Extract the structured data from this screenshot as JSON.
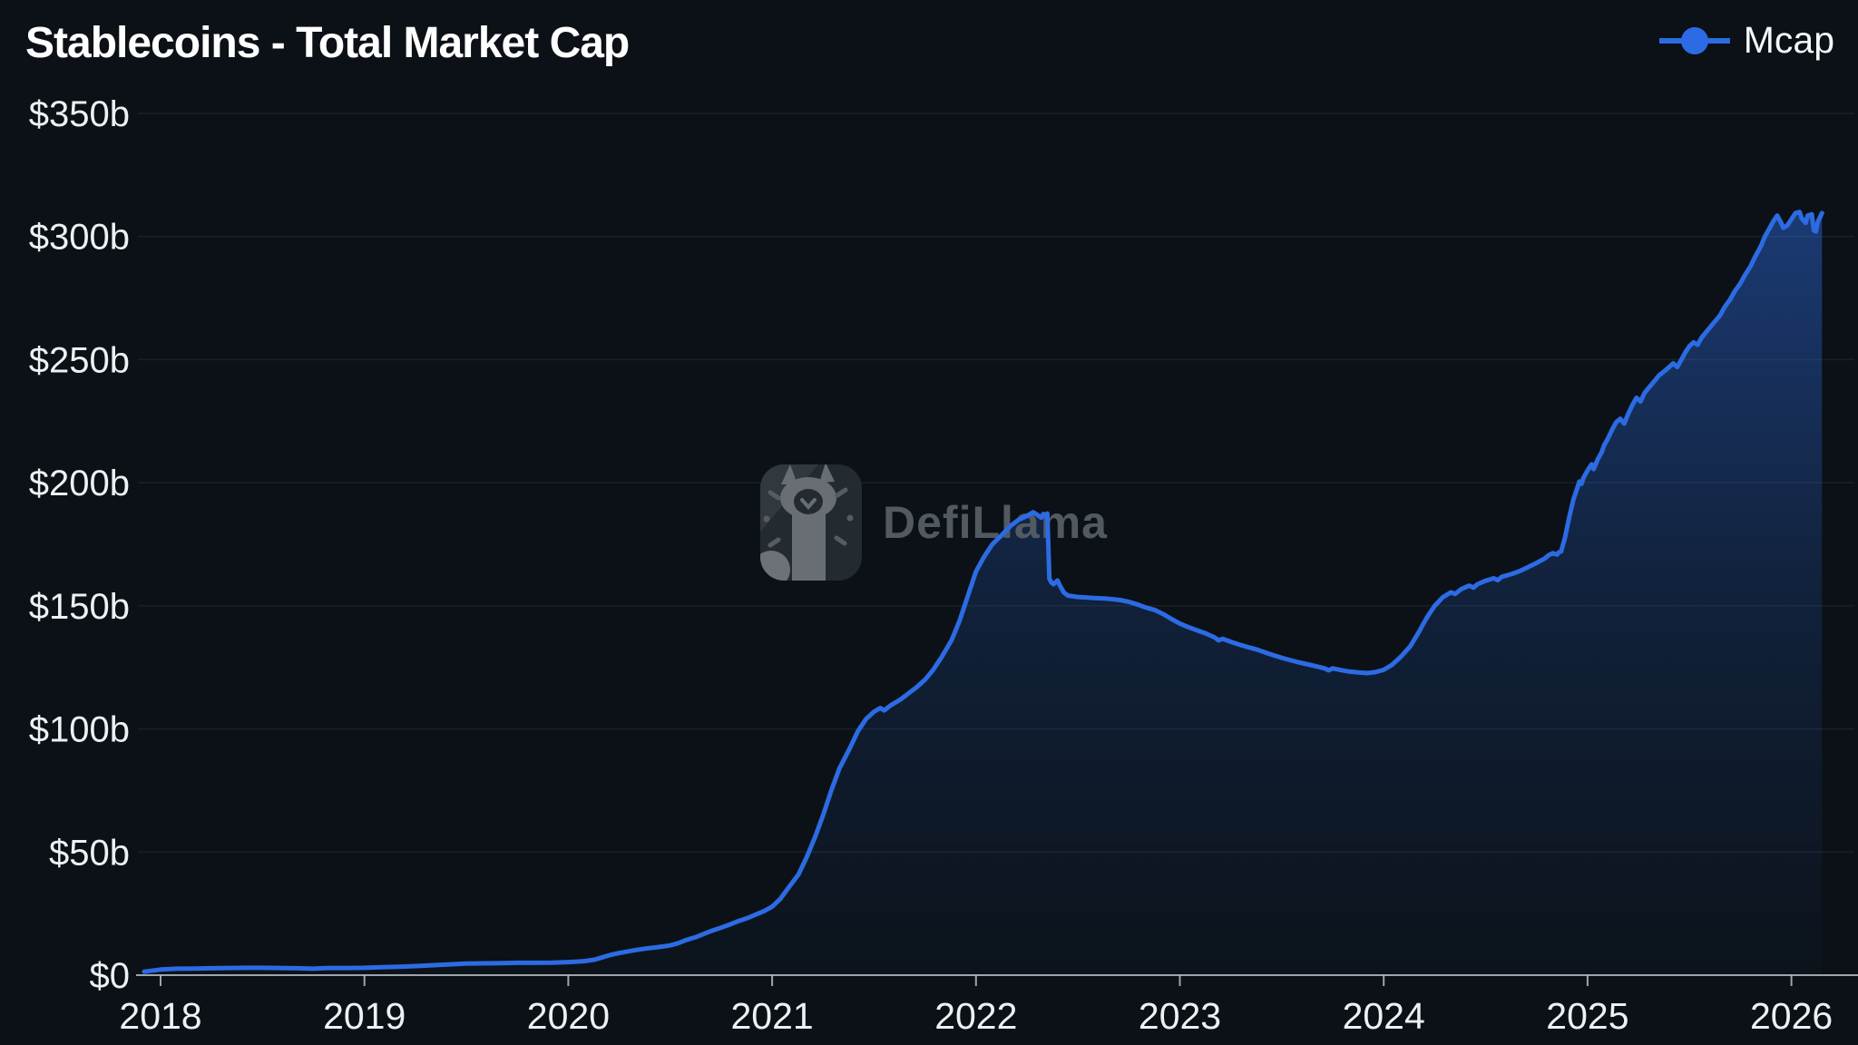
{
  "header": {
    "title": "Stablecoins - Total Market Cap"
  },
  "legend": {
    "label": "Mcap",
    "marker_color": "#2c6be3"
  },
  "watermark": {
    "brand": "DefiLlama"
  },
  "colors": {
    "background": "#0b1116",
    "line": "#2c6be3",
    "area_top": "rgba(45,108,228,0.52)",
    "area_mid": "rgba(45,108,228,0.18)",
    "area_bottom": "rgba(45,108,228,0.02)",
    "grid": "rgba(255,255,255,0.065)",
    "axis": "rgba(185,192,198,0.85)",
    "text": "#eef1f3",
    "watermark_text": "#565d64"
  },
  "chart_data": {
    "type": "area",
    "title": "Stablecoins - Total Market Cap",
    "series_name": "Mcap",
    "unit": "USD billions",
    "grid": "horizontal",
    "legend_position": "top-right",
    "xlim": [
      2017.92,
      2026.33
    ],
    "ylim": [
      0,
      350
    ],
    "x_ticks": [
      2018,
      2019,
      2020,
      2021,
      2022,
      2023,
      2024,
      2025,
      2026
    ],
    "x_tick_labels": [
      "2018",
      "2019",
      "2020",
      "2021",
      "2022",
      "2023",
      "2024",
      "2025",
      "2026"
    ],
    "y_tick_values": [
      0,
      50,
      100,
      150,
      200,
      250,
      300,
      350
    ],
    "y_tick_labels": [
      "$0",
      "$50b",
      "$100b",
      "$150b",
      "$200b",
      "$250b",
      "$300b",
      "$350b"
    ],
    "points": [
      [
        2017.92,
        1.4
      ],
      [
        2018.0,
        2.3
      ],
      [
        2018.08,
        2.6
      ],
      [
        2018.17,
        2.7
      ],
      [
        2018.25,
        2.8
      ],
      [
        2018.33,
        2.9
      ],
      [
        2018.42,
        3.0
      ],
      [
        2018.5,
        3.0
      ],
      [
        2018.58,
        2.9
      ],
      [
        2018.67,
        2.8
      ],
      [
        2018.75,
        2.6
      ],
      [
        2018.79,
        2.8
      ],
      [
        2018.83,
        2.9
      ],
      [
        2018.92,
        2.9
      ],
      [
        2019.0,
        3.0
      ],
      [
        2019.08,
        3.2
      ],
      [
        2019.17,
        3.4
      ],
      [
        2019.25,
        3.7
      ],
      [
        2019.33,
        4.0
      ],
      [
        2019.42,
        4.4
      ],
      [
        2019.5,
        4.7
      ],
      [
        2019.58,
        4.8
      ],
      [
        2019.67,
        4.9
      ],
      [
        2019.75,
        5.0
      ],
      [
        2019.83,
        5.0
      ],
      [
        2019.92,
        5.1
      ],
      [
        2020.0,
        5.3
      ],
      [
        2020.04,
        5.5
      ],
      [
        2020.08,
        5.7
      ],
      [
        2020.13,
        6.3
      ],
      [
        2020.17,
        7.3
      ],
      [
        2020.21,
        8.3
      ],
      [
        2020.25,
        9.0
      ],
      [
        2020.29,
        9.6
      ],
      [
        2020.33,
        10.2
      ],
      [
        2020.38,
        10.8
      ],
      [
        2020.42,
        11.2
      ],
      [
        2020.46,
        11.6
      ],
      [
        2020.5,
        12.1
      ],
      [
        2020.54,
        13.0
      ],
      [
        2020.58,
        14.3
      ],
      [
        2020.63,
        15.6
      ],
      [
        2020.67,
        16.9
      ],
      [
        2020.71,
        18.2
      ],
      [
        2020.75,
        19.3
      ],
      [
        2020.79,
        20.5
      ],
      [
        2020.83,
        21.8
      ],
      [
        2020.88,
        23.2
      ],
      [
        2020.92,
        24.6
      ],
      [
        2020.96,
        26.0
      ],
      [
        2021.0,
        27.8
      ],
      [
        2021.04,
        31
      ],
      [
        2021.08,
        35.5
      ],
      [
        2021.13,
        41
      ],
      [
        2021.17,
        48
      ],
      [
        2021.21,
        56
      ],
      [
        2021.25,
        65
      ],
      [
        2021.29,
        75
      ],
      [
        2021.33,
        84
      ],
      [
        2021.38,
        92
      ],
      [
        2021.42,
        99
      ],
      [
        2021.46,
        104
      ],
      [
        2021.5,
        107
      ],
      [
        2021.53,
        108.5
      ],
      [
        2021.55,
        107.5
      ],
      [
        2021.58,
        109.5
      ],
      [
        2021.63,
        112
      ],
      [
        2021.67,
        114.5
      ],
      [
        2021.71,
        117
      ],
      [
        2021.75,
        120
      ],
      [
        2021.79,
        124
      ],
      [
        2021.83,
        129
      ],
      [
        2021.88,
        136
      ],
      [
        2021.92,
        144
      ],
      [
        2021.96,
        154
      ],
      [
        2022.0,
        164
      ],
      [
        2022.04,
        170
      ],
      [
        2022.08,
        175
      ],
      [
        2022.13,
        179
      ],
      [
        2022.17,
        182.5
      ],
      [
        2022.21,
        185
      ],
      [
        2022.25,
        186.5
      ],
      [
        2022.28,
        188
      ],
      [
        2022.3,
        187
      ],
      [
        2022.32,
        185.8
      ],
      [
        2022.33,
        187.3
      ],
      [
        2022.34,
        186.8
      ],
      [
        2022.35,
        187.5
      ],
      [
        2022.36,
        161
      ],
      [
        2022.37,
        159.5
      ],
      [
        2022.38,
        158.8
      ],
      [
        2022.4,
        160.3
      ],
      [
        2022.41,
        158.5
      ],
      [
        2022.43,
        155.5
      ],
      [
        2022.45,
        154.2
      ],
      [
        2022.5,
        153.6
      ],
      [
        2022.54,
        153.4
      ],
      [
        2022.58,
        153.2
      ],
      [
        2022.63,
        153.0
      ],
      [
        2022.67,
        152.7
      ],
      [
        2022.71,
        152.3
      ],
      [
        2022.75,
        151.6
      ],
      [
        2022.79,
        150.6
      ],
      [
        2022.83,
        149.4
      ],
      [
        2022.88,
        148.2
      ],
      [
        2022.92,
        146.6
      ],
      [
        2022.96,
        144.6
      ],
      [
        2023.0,
        142.8
      ],
      [
        2023.04,
        141.4
      ],
      [
        2023.08,
        140.2
      ],
      [
        2023.13,
        138.7
      ],
      [
        2023.17,
        137.2
      ],
      [
        2023.19,
        136.0
      ],
      [
        2023.21,
        136.6
      ],
      [
        2023.25,
        135.4
      ],
      [
        2023.29,
        134.3
      ],
      [
        2023.33,
        133.3
      ],
      [
        2023.38,
        132.2
      ],
      [
        2023.42,
        131.0
      ],
      [
        2023.46,
        129.9
      ],
      [
        2023.5,
        128.9
      ],
      [
        2023.54,
        128.0
      ],
      [
        2023.58,
        127.1
      ],
      [
        2023.63,
        126.2
      ],
      [
        2023.67,
        125.4
      ],
      [
        2023.71,
        124.6
      ],
      [
        2023.73,
        123.8
      ],
      [
        2023.75,
        124.6
      ],
      [
        2023.79,
        123.9
      ],
      [
        2023.83,
        123.3
      ],
      [
        2023.88,
        122.9
      ],
      [
        2023.92,
        122.7
      ],
      [
        2023.96,
        123.1
      ],
      [
        2024.0,
        124.0
      ],
      [
        2024.04,
        126.0
      ],
      [
        2024.08,
        129.0
      ],
      [
        2024.13,
        133.5
      ],
      [
        2024.17,
        139.0
      ],
      [
        2024.21,
        145.0
      ],
      [
        2024.25,
        150.0
      ],
      [
        2024.29,
        153.5
      ],
      [
        2024.33,
        155.5
      ],
      [
        2024.35,
        154.8
      ],
      [
        2024.38,
        156.8
      ],
      [
        2024.42,
        158.2
      ],
      [
        2024.44,
        157.4
      ],
      [
        2024.46,
        158.8
      ],
      [
        2024.5,
        160.2
      ],
      [
        2024.54,
        161.2
      ],
      [
        2024.56,
        160.4
      ],
      [
        2024.58,
        161.8
      ],
      [
        2024.63,
        163.0
      ],
      [
        2024.67,
        164.2
      ],
      [
        2024.71,
        165.8
      ],
      [
        2024.75,
        167.4
      ],
      [
        2024.79,
        169.2
      ],
      [
        2024.81,
        170.6
      ],
      [
        2024.83,
        171.4
      ],
      [
        2024.85,
        170.8
      ],
      [
        2024.86,
        171.8
      ],
      [
        2024.87,
        172.0
      ],
      [
        2024.89,
        178
      ],
      [
        2024.91,
        186
      ],
      [
        2024.93,
        193
      ],
      [
        2024.95,
        198
      ],
      [
        2024.96,
        200.5
      ],
      [
        2024.97,
        199.5
      ],
      [
        2024.98,
        202
      ],
      [
        2025.0,
        205
      ],
      [
        2025.02,
        207.5
      ],
      [
        2025.03,
        205.5
      ],
      [
        2025.05,
        209.5
      ],
      [
        2025.07,
        212.5
      ],
      [
        2025.08,
        215
      ],
      [
        2025.1,
        218
      ],
      [
        2025.12,
        221.5
      ],
      [
        2025.14,
        224.5
      ],
      [
        2025.16,
        226
      ],
      [
        2025.18,
        224
      ],
      [
        2025.2,
        228
      ],
      [
        2025.22,
        231.5
      ],
      [
        2025.24,
        234.5
      ],
      [
        2025.26,
        233
      ],
      [
        2025.28,
        236.5
      ],
      [
        2025.3,
        238.5
      ],
      [
        2025.33,
        241.5
      ],
      [
        2025.35,
        243.5
      ],
      [
        2025.38,
        245.5
      ],
      [
        2025.4,
        247
      ],
      [
        2025.42,
        248.5
      ],
      [
        2025.44,
        247
      ],
      [
        2025.46,
        250
      ],
      [
        2025.48,
        253
      ],
      [
        2025.5,
        255.5
      ],
      [
        2025.52,
        257
      ],
      [
        2025.54,
        256
      ],
      [
        2025.56,
        259
      ],
      [
        2025.58,
        261
      ],
      [
        2025.6,
        263
      ],
      [
        2025.62,
        265
      ],
      [
        2025.65,
        268
      ],
      [
        2025.67,
        271
      ],
      [
        2025.7,
        274.5
      ],
      [
        2025.72,
        277.5
      ],
      [
        2025.75,
        281
      ],
      [
        2025.77,
        284
      ],
      [
        2025.8,
        288
      ],
      [
        2025.82,
        291.5
      ],
      [
        2025.85,
        296
      ],
      [
        2025.87,
        300
      ],
      [
        2025.89,
        303
      ],
      [
        2025.91,
        306
      ],
      [
        2025.93,
        308.5
      ],
      [
        2025.95,
        305.5
      ],
      [
        2025.96,
        303.5
      ],
      [
        2025.98,
        304.5
      ],
      [
        2026.0,
        307
      ],
      [
        2026.02,
        309.5
      ],
      [
        2026.04,
        310
      ],
      [
        2026.05,
        307.5
      ],
      [
        2026.07,
        305.5
      ],
      [
        2026.08,
        308.5
      ],
      [
        2026.1,
        309
      ],
      [
        2026.11,
        302.5
      ],
      [
        2026.12,
        302
      ],
      [
        2026.13,
        306
      ],
      [
        2026.15,
        309.5
      ]
    ]
  }
}
